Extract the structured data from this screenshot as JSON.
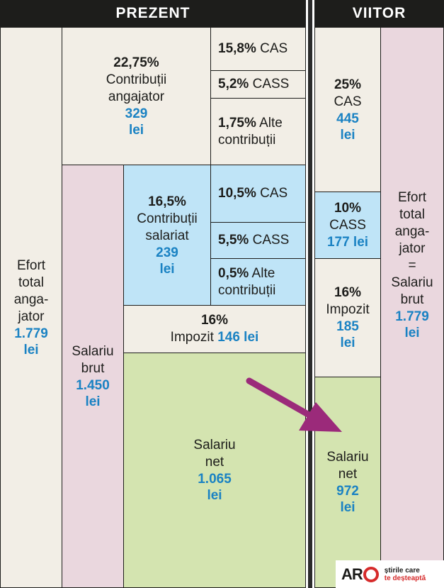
{
  "headers": {
    "present": "PREZENT",
    "future": "VIITOR"
  },
  "present": {
    "total_effort": {
      "lines": [
        "Efort",
        "total",
        "anga-",
        "jator"
      ],
      "value": "1.779",
      "unit": "lei"
    },
    "employer_contrib": {
      "percent": "22,75%",
      "label_1": "Contribuții",
      "label_2": "angajator",
      "value": "329",
      "unit": "lei"
    },
    "employer_items": [
      {
        "percent": "15,8%",
        "label": "CAS"
      },
      {
        "percent": "5,2%",
        "label": "CASS"
      },
      {
        "percent": "1,75%",
        "label": "Alte",
        "label_2": "contribuții"
      }
    ],
    "gross_salary": {
      "label_1": "Salariu",
      "label_2": "brut",
      "value": "1.450",
      "unit": "lei"
    },
    "employee_contrib": {
      "percent": "16,5%",
      "label_1": "Contribuții",
      "label_2": "salariat",
      "value": "239",
      "unit": "lei"
    },
    "employee_items": [
      {
        "percent": "10,5%",
        "label": "CAS"
      },
      {
        "percent": "5,5%",
        "label": "CASS"
      },
      {
        "percent": "0,5%",
        "label": "Alte",
        "label_2": "contribuții"
      }
    ],
    "tax": {
      "percent": "16%",
      "label": "Impozit",
      "value": "146 lei"
    },
    "net_salary": {
      "label_1": "Salariu",
      "label_2": "net",
      "value": "1.065",
      "unit": "lei"
    }
  },
  "future": {
    "cas": {
      "percent": "25%",
      "label": "CAS",
      "value": "445",
      "unit": "lei"
    },
    "cass": {
      "percent": "10%",
      "label": "CASS",
      "value": "177 lei"
    },
    "tax": {
      "percent": "16%",
      "label": "Impozit",
      "value": "185",
      "unit": "lei"
    },
    "net_salary": {
      "label_1": "Salariu",
      "label_2": "net",
      "value": "972",
      "unit": "lei"
    },
    "total_effort": {
      "lines": [
        "Efort",
        "total",
        "anga-",
        "jator",
        "=",
        "Salariu",
        "brut"
      ],
      "value": "1.779",
      "unit": "lei"
    }
  },
  "logo": {
    "brand": "AR",
    "tagline_1": "știrile care",
    "tagline_2": "te deșteaptă"
  },
  "colors": {
    "beige": "#f2eee6",
    "pink": "#ead7de",
    "blue": "#bfe4f7",
    "green": "#d4e4b0",
    "value_blue": "#1a82c3",
    "arrow": "#9b2a7a",
    "header": "#1d1d1b"
  },
  "icons": {
    "arrow": "arrow-right-down-icon",
    "logo_q": "target-q-icon"
  }
}
